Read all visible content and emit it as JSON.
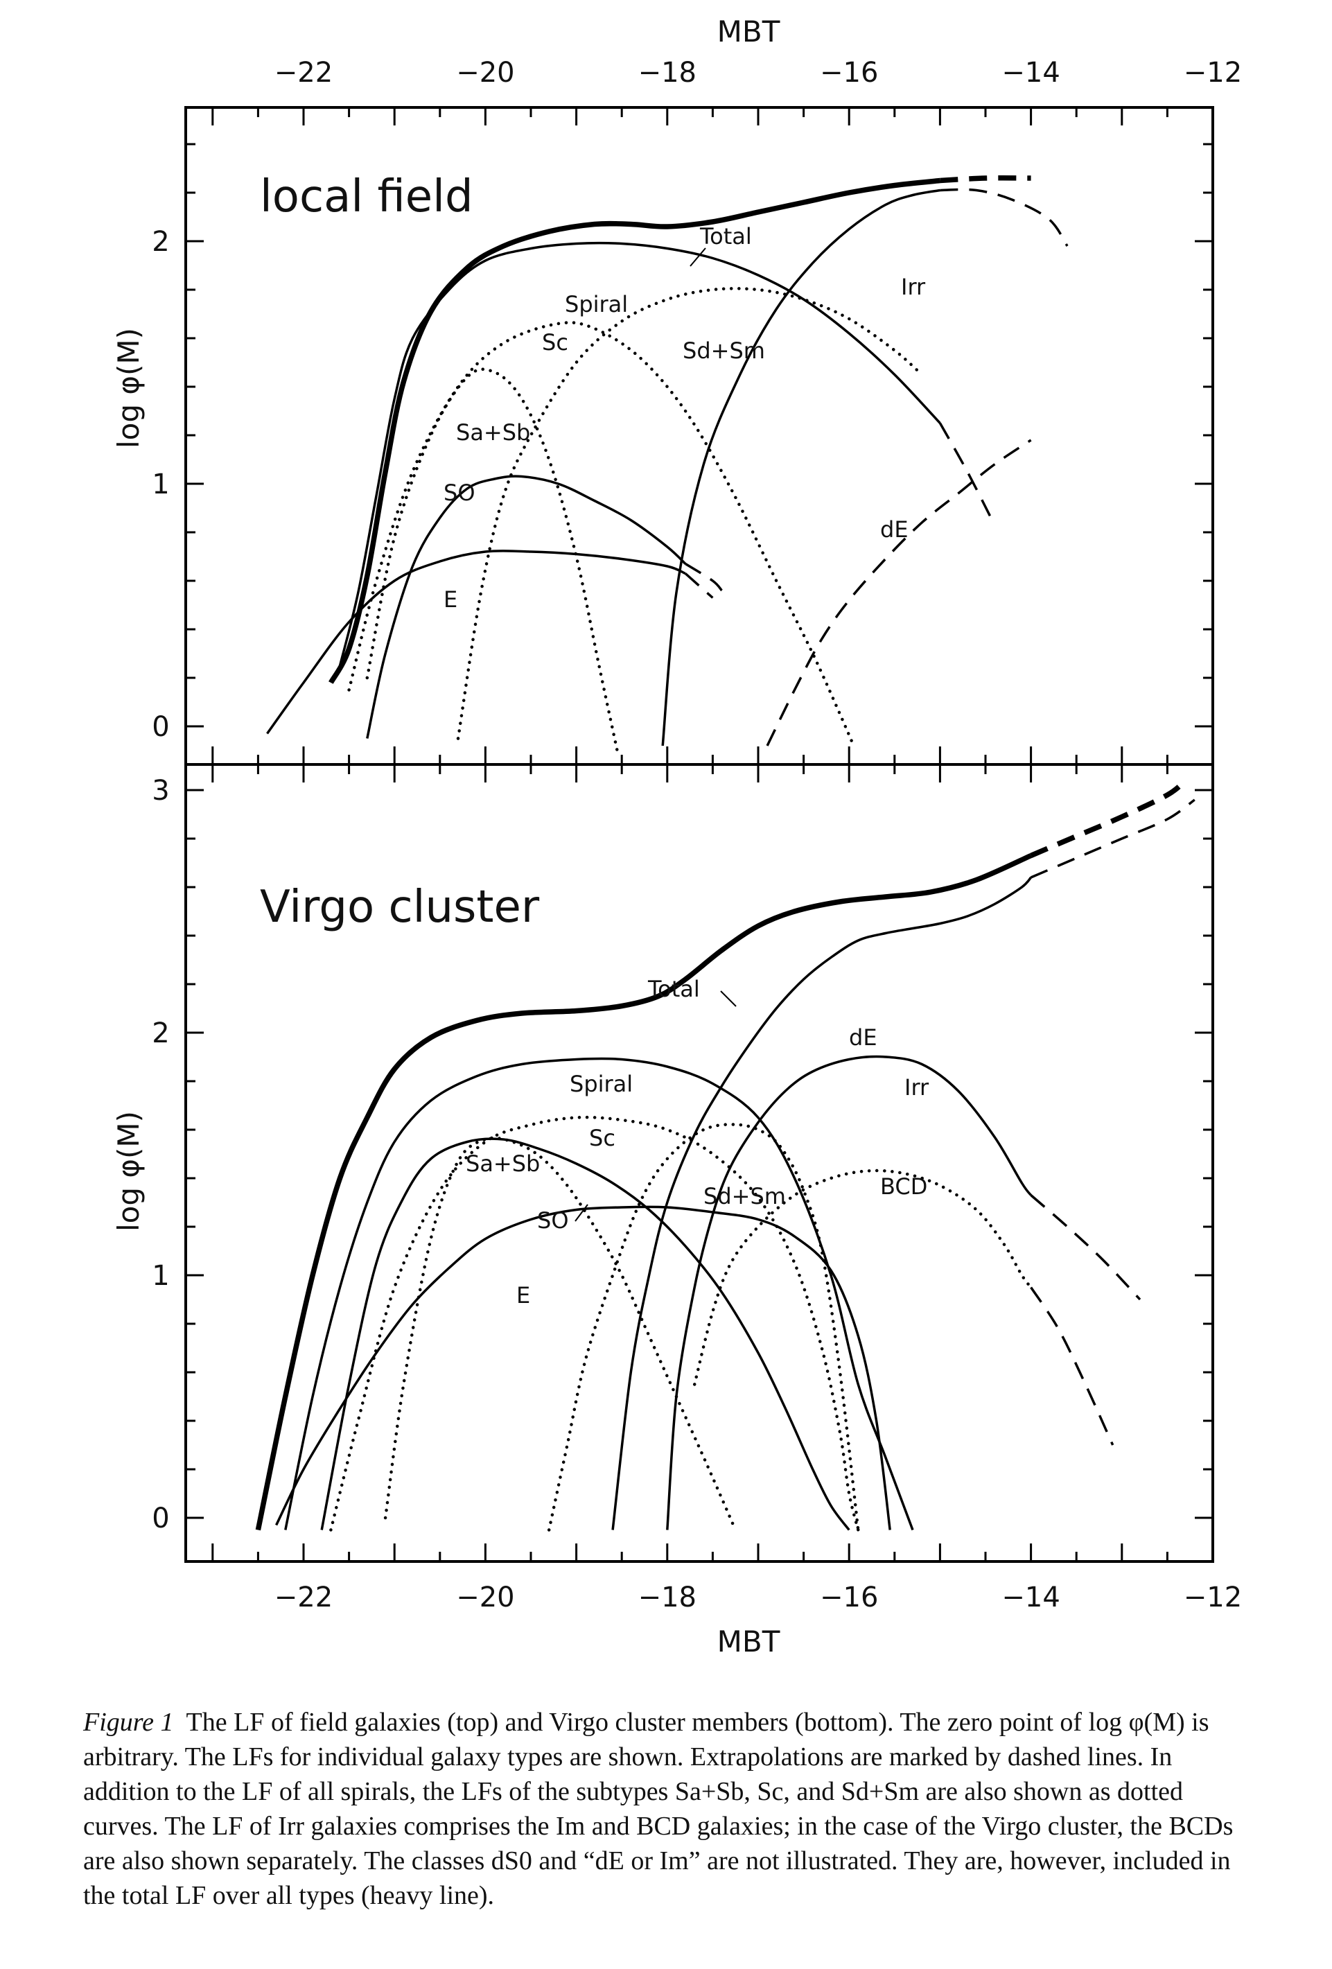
{
  "chart_data": [
    {
      "type": "line",
      "title": "local field",
      "ylabel": "log φ(M)",
      "xlabel": "M_BT",
      "xlim": [
        -23.3,
        -12
      ],
      "ylim": [
        -0.2,
        2.75
      ],
      "x_ticks": [
        -22,
        -20,
        -18,
        -16,
        -14,
        -12
      ],
      "y_ticks": [
        0,
        1,
        2
      ],
      "series": [
        {
          "name": "Total",
          "style": "heavy",
          "x": [
            -21.7,
            -21.5,
            -21.3,
            -21.1,
            -20.9,
            -20.6,
            -20.2,
            -19.8,
            -19.3,
            -18.8,
            -18.4,
            -18.0,
            -17.5,
            -17.0,
            -16.5,
            -16.0,
            -15.5,
            -15.0
          ],
          "y": [
            0.18,
            0.32,
            0.62,
            1.05,
            1.42,
            1.71,
            1.89,
            1.98,
            2.04,
            2.07,
            2.07,
            2.06,
            2.08,
            2.12,
            2.16,
            2.2,
            2.23,
            2.25
          ]
        },
        {
          "name": "Total (extrapolated)",
          "style": "heavy-dashed",
          "x": [
            -15.0,
            -14.5,
            -14.0
          ],
          "y": [
            2.25,
            2.26,
            2.26
          ]
        },
        {
          "name": "Spiral",
          "style": "solid",
          "x": [
            -21.6,
            -21.4,
            -21.2,
            -21.0,
            -20.8,
            -20.4,
            -20.0,
            -19.5,
            -19.0,
            -18.5,
            -18.0,
            -17.5,
            -17.0,
            -16.5,
            -16.0,
            -15.5,
            -15.0
          ],
          "y": [
            0.25,
            0.55,
            0.95,
            1.35,
            1.6,
            1.8,
            1.92,
            1.97,
            1.99,
            1.99,
            1.97,
            1.93,
            1.86,
            1.76,
            1.62,
            1.45,
            1.25
          ]
        },
        {
          "name": "Spiral (extrapolated)",
          "style": "dashed",
          "x": [
            -15.0,
            -14.7,
            -14.4
          ],
          "y": [
            1.25,
            1.05,
            0.83
          ]
        },
        {
          "name": "Sc",
          "style": "dotted",
          "x": [
            -21.5,
            -21.2,
            -20.8,
            -20.3,
            -19.8,
            -19.2,
            -18.8,
            -18.3,
            -17.8,
            -17.3,
            -16.8,
            -16.4,
            -16.1,
            -15.95
          ],
          "y": [
            0.15,
            0.6,
            1.05,
            1.4,
            1.58,
            1.66,
            1.64,
            1.52,
            1.3,
            0.98,
            0.6,
            0.3,
            0.05,
            -0.08
          ]
        },
        {
          "name": "Sa+Sb",
          "style": "dotted",
          "x": [
            -21.3,
            -21.0,
            -20.6,
            -20.2,
            -19.9,
            -19.6,
            -19.3,
            -19.0,
            -18.75,
            -18.55
          ],
          "y": [
            0.2,
            0.78,
            1.2,
            1.44,
            1.46,
            1.35,
            1.1,
            0.7,
            0.25,
            -0.1
          ]
        },
        {
          "name": "Sd+Sm",
          "style": "dotted",
          "x": [
            -20.3,
            -20.05,
            -19.8,
            -19.5,
            -19.0,
            -18.5,
            -18.0,
            -17.5,
            -17.0,
            -16.5,
            -16.0,
            -15.5,
            -15.2
          ],
          "y": [
            -0.05,
            0.55,
            0.95,
            1.2,
            1.5,
            1.67,
            1.76,
            1.8,
            1.8,
            1.76,
            1.68,
            1.55,
            1.45
          ]
        },
        {
          "name": "S0",
          "style": "solid",
          "x": [
            -21.3,
            -21.1,
            -20.8,
            -20.5,
            -20.2,
            -19.9,
            -19.6,
            -19.2,
            -18.8,
            -18.4,
            -18.0,
            -17.8
          ],
          "y": [
            -0.05,
            0.3,
            0.66,
            0.86,
            0.98,
            1.02,
            1.03,
            1.0,
            0.93,
            0.85,
            0.74,
            0.67
          ]
        },
        {
          "name": "S0 (extrapolated)",
          "style": "dashed",
          "x": [
            -17.8,
            -17.5,
            -17.4
          ],
          "y": [
            0.67,
            0.6,
            0.56
          ]
        },
        {
          "name": "E",
          "style": "solid",
          "x": [
            -22.4,
            -22.0,
            -21.5,
            -21.0,
            -20.5,
            -20.0,
            -19.5,
            -19.0,
            -18.5,
            -18.0,
            -17.8
          ],
          "y": [
            -0.03,
            0.18,
            0.43,
            0.6,
            0.68,
            0.72,
            0.72,
            0.71,
            0.69,
            0.66,
            0.63
          ]
        },
        {
          "name": "E (extrapolated)",
          "style": "dashed",
          "x": [
            -17.8,
            -17.5
          ],
          "y": [
            0.63,
            0.53
          ]
        },
        {
          "name": "Irr",
          "style": "solid",
          "x": [
            -18.05,
            -17.9,
            -17.6,
            -17.2,
            -16.8,
            -16.4,
            -16.0,
            -15.6,
            -15.3,
            -15.0
          ],
          "y": [
            -0.08,
            0.55,
            1.08,
            1.45,
            1.72,
            1.91,
            2.05,
            2.15,
            2.19,
            2.21
          ]
        },
        {
          "name": "Irr (extrapolated)",
          "style": "dashed",
          "x": [
            -15.0,
            -14.6,
            -14.2,
            -13.8,
            -13.6
          ],
          "y": [
            2.21,
            2.21,
            2.17,
            2.09,
            1.98
          ]
        },
        {
          "name": "dE",
          "style": "dashed",
          "x": [
            -16.9,
            -16.6,
            -16.3,
            -16.0,
            -15.6,
            -15.2,
            -14.8,
            -14.4,
            -14.0
          ],
          "y": [
            -0.08,
            0.15,
            0.36,
            0.52,
            0.69,
            0.84,
            0.96,
            1.08,
            1.18
          ]
        }
      ],
      "labels": {
        "total": "Total",
        "spiral": "Spiral",
        "sc": "Sc",
        "sd_sm": "Sd+Sm",
        "sa_sb": "Sa+Sb",
        "s0": "SO",
        "e": "E",
        "irr": "Irr",
        "de": "dE"
      }
    },
    {
      "type": "line",
      "title": "Virgo cluster",
      "ylabel": "log φ(M)",
      "xlabel": "M_BT",
      "xlim": [
        -23.3,
        -12
      ],
      "ylim": [
        -0.2,
        3.3
      ],
      "x_ticks": [
        -22,
        -20,
        -18,
        -16,
        -14,
        -12
      ],
      "y_ticks": [
        0,
        1,
        2,
        3
      ],
      "series": [
        {
          "name": "Total",
          "style": "heavy",
          "x": [
            -22.5,
            -22.2,
            -21.9,
            -21.6,
            -21.3,
            -21.0,
            -20.6,
            -20.1,
            -19.6,
            -19.0,
            -18.5,
            -18.1,
            -17.8,
            -17.4,
            -17.0,
            -16.6,
            -16.1,
            -15.6,
            -15.1,
            -14.6,
            -14.0
          ],
          "y": [
            -0.05,
            0.5,
            1.0,
            1.4,
            1.65,
            1.85,
            1.98,
            2.05,
            2.08,
            2.09,
            2.11,
            2.15,
            2.22,
            2.34,
            2.44,
            2.5,
            2.54,
            2.56,
            2.58,
            2.63,
            2.73
          ]
        },
        {
          "name": "Total (extrapolated)",
          "style": "heavy-dashed",
          "x": [
            -14.0,
            -13.5,
            -13.0,
            -12.5,
            -12.3
          ],
          "y": [
            2.73,
            2.81,
            2.89,
            2.98,
            3.04
          ]
        },
        {
          "name": "Spiral",
          "style": "solid",
          "x": [
            -22.2,
            -21.9,
            -21.6,
            -21.3,
            -21.0,
            -20.6,
            -20.1,
            -19.6,
            -19.0,
            -18.5,
            -18.0,
            -17.5,
            -17.0,
            -16.6,
            -16.2,
            -15.9,
            -15.6,
            -15.3
          ],
          "y": [
            -0.05,
            0.5,
            0.95,
            1.3,
            1.55,
            1.72,
            1.82,
            1.87,
            1.89,
            1.89,
            1.86,
            1.79,
            1.65,
            1.4,
            1.0,
            0.55,
            0.25,
            -0.05
          ]
        },
        {
          "name": "Sc",
          "style": "dotted",
          "x": [
            -21.7,
            -21.4,
            -21.0,
            -20.5,
            -20.0,
            -19.5,
            -19.0,
            -18.5,
            -18.0,
            -17.5,
            -17.0,
            -16.6,
            -16.3,
            -16.1,
            -16.0,
            -15.9
          ],
          "y": [
            -0.05,
            0.4,
            0.95,
            1.35,
            1.55,
            1.62,
            1.65,
            1.64,
            1.6,
            1.5,
            1.32,
            1.05,
            0.7,
            0.35,
            0.1,
            -0.05
          ]
        },
        {
          "name": "Sa+Sb",
          "style": "dotted",
          "x": [
            -21.1,
            -20.9,
            -20.6,
            -20.3,
            -20.0,
            -19.7,
            -19.4,
            -19.1,
            -18.8,
            -18.5,
            -18.2,
            -17.9,
            -17.6,
            -17.4,
            -17.25
          ],
          "y": [
            0.0,
            0.55,
            1.15,
            1.47,
            1.56,
            1.55,
            1.49,
            1.37,
            1.2,
            1.0,
            0.75,
            0.5,
            0.25,
            0.08,
            -0.05
          ]
        },
        {
          "name": "S0",
          "style": "solid",
          "x": [
            -21.8,
            -21.5,
            -21.2,
            -20.9,
            -20.6,
            -20.2,
            -19.8,
            -19.4,
            -19.0,
            -18.6,
            -18.2,
            -17.8,
            -17.4,
            -17.0,
            -16.7,
            -16.4,
            -16.2,
            -16.0
          ],
          "y": [
            -0.05,
            0.55,
            1.05,
            1.32,
            1.48,
            1.55,
            1.56,
            1.52,
            1.46,
            1.38,
            1.27,
            1.12,
            0.93,
            0.68,
            0.45,
            0.2,
            0.05,
            -0.05
          ]
        },
        {
          "name": "E",
          "style": "solid",
          "x": [
            -22.3,
            -22.0,
            -21.6,
            -21.2,
            -20.8,
            -20.4,
            -20.0,
            -19.5,
            -19.0,
            -18.5,
            -18.0,
            -17.5,
            -17.0,
            -16.6,
            -16.2,
            -15.9,
            -15.7,
            -15.55
          ],
          "y": [
            -0.03,
            0.2,
            0.45,
            0.68,
            0.88,
            1.03,
            1.15,
            1.23,
            1.27,
            1.28,
            1.28,
            1.26,
            1.23,
            1.16,
            1.02,
            0.75,
            0.4,
            -0.05
          ]
        },
        {
          "name": "Sd+Sm",
          "style": "dotted",
          "x": [
            -19.3,
            -19.1,
            -18.9,
            -18.6,
            -18.3,
            -18.0,
            -17.6,
            -17.2,
            -16.9,
            -16.7,
            -16.5,
            -16.3,
            -16.1,
            -15.9
          ],
          "y": [
            -0.05,
            0.3,
            0.65,
            1.0,
            1.3,
            1.48,
            1.6,
            1.62,
            1.58,
            1.5,
            1.35,
            1.1,
            0.6,
            -0.05
          ]
        },
        {
          "name": "dE",
          "style": "solid",
          "x": [
            -18.6,
            -18.4,
            -18.2,
            -18.0,
            -17.7,
            -17.4,
            -17.1,
            -16.8,
            -16.5,
            -16.2,
            -15.9,
            -15.6,
            -15.3,
            -15.0,
            -14.7,
            -14.4,
            -14.1,
            -14.0
          ],
          "y": [
            -0.05,
            0.6,
            1.0,
            1.3,
            1.58,
            1.78,
            1.95,
            2.1,
            2.22,
            2.31,
            2.38,
            2.41,
            2.43,
            2.45,
            2.48,
            2.53,
            2.6,
            2.64
          ]
        },
        {
          "name": "dE (extrapolated)",
          "style": "dashed",
          "x": [
            -14.0,
            -13.5,
            -13.0,
            -12.5,
            -12.2
          ],
          "y": [
            2.64,
            2.72,
            2.8,
            2.88,
            2.96
          ]
        },
        {
          "name": "Irr",
          "style": "solid",
          "x": [
            -18.0,
            -17.9,
            -17.7,
            -17.5,
            -17.3,
            -17.0,
            -16.7,
            -16.4,
            -16.0,
            -15.6,
            -15.2,
            -14.8,
            -14.4,
            -14.1,
            -14.0
          ],
          "y": [
            -0.05,
            0.5,
            0.95,
            1.25,
            1.45,
            1.63,
            1.76,
            1.84,
            1.89,
            1.9,
            1.87,
            1.76,
            1.57,
            1.38,
            1.33
          ]
        },
        {
          "name": "Irr (extrapolated)",
          "style": "dashed",
          "x": [
            -14.0,
            -13.6,
            -13.2,
            -12.8
          ],
          "y": [
            1.33,
            1.2,
            1.06,
            0.9
          ]
        },
        {
          "name": "BCD",
          "style": "dotted",
          "x": [
            -17.7,
            -17.5,
            -17.3,
            -17.0,
            -16.6,
            -16.2,
            -15.8,
            -15.4,
            -15.0,
            -14.6,
            -14.3,
            -14.1,
            -14.0
          ],
          "y": [
            0.55,
            0.85,
            1.05,
            1.2,
            1.33,
            1.4,
            1.43,
            1.42,
            1.37,
            1.27,
            1.13,
            1.0,
            0.95
          ]
        },
        {
          "name": "BCD (extrapolated)",
          "style": "dashed",
          "x": [
            -14.0,
            -13.7,
            -13.4,
            -13.1
          ],
          "y": [
            0.95,
            0.78,
            0.55,
            0.3
          ]
        }
      ],
      "labels": {
        "total": "Total",
        "spiral": "Spiral",
        "sc": "Sc",
        "sa_sb": "Sa+Sb",
        "s0": "SO",
        "e": "E",
        "sd_sm": "Sd+Sm",
        "de": "dE",
        "irr": "Irr",
        "bcd": "BCD"
      }
    }
  ],
  "axis": {
    "top_label": "MBT",
    "bottom_label": "MBT",
    "y_label_top": "log φ(M)",
    "y_label_bottom": "log φ(M)"
  },
  "caption": {
    "tag": "Figure 1",
    "text": "The LF of field galaxies (top) and Virgo cluster members (bottom). The zero point of log φ(M) is arbitrary. The LFs for individual galaxy types are shown. Extrapolations are marked by dashed lines. In addition to the LF of all spirals, the LFs of the subtypes Sa+Sb, Sc, and Sd+Sm are also shown as dotted curves. The LF of Irr galaxies comprises the Im and BCD galaxies; in the case of the Virgo cluster, the BCDs are also shown separately. The classes dS0 and “dE or Im” are not illustrated. They are, however, included in the total LF over all types (heavy line)."
  }
}
